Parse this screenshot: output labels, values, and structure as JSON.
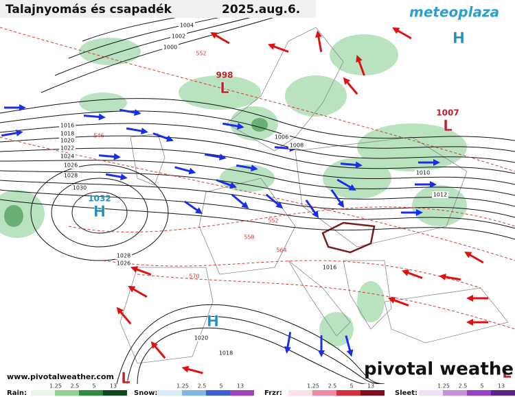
{
  "header": {
    "title": "Talajnyomás és csapadék",
    "date": "2025.aug.6.",
    "logo": "meteoplaza"
  },
  "centers": [
    {
      "kind": "H",
      "pressure": 1032
    },
    {
      "kind": "L",
      "pressure": 998
    },
    {
      "kind": "L",
      "pressure": 1007
    },
    {
      "kind": "H"
    },
    {
      "kind": "H"
    },
    {
      "kind": "L"
    },
    {
      "kind": "L"
    }
  ],
  "isobar_labels": [
    1004,
    1002,
    1000,
    1016,
    1018,
    1020,
    1022,
    1024,
    1026,
    1028,
    1030,
    1006,
    1008,
    1010,
    1012,
    1028,
    1026,
    1016,
    1020,
    1018
  ],
  "thickness_labels": [
    552,
    546,
    552,
    558,
    564,
    570
  ],
  "legend": [
    {
      "label": "Rain:",
      "ticks": [
        "1.25",
        "2.5",
        "5",
        "13"
      ]
    },
    {
      "label": "Snow:",
      "ticks": [
        "1.25",
        "2.5",
        "5",
        "13"
      ]
    },
    {
      "label": "Frzr:",
      "ticks": [
        "1.25",
        "2.5",
        "5",
        "13"
      ]
    },
    {
      "label": "Sleet:",
      "ticks": [
        "1.25",
        "2.5",
        "5",
        "13"
      ]
    }
  ],
  "footer": {
    "url": "www.pivotalweather.com",
    "brand": "pivotal weather"
  }
}
